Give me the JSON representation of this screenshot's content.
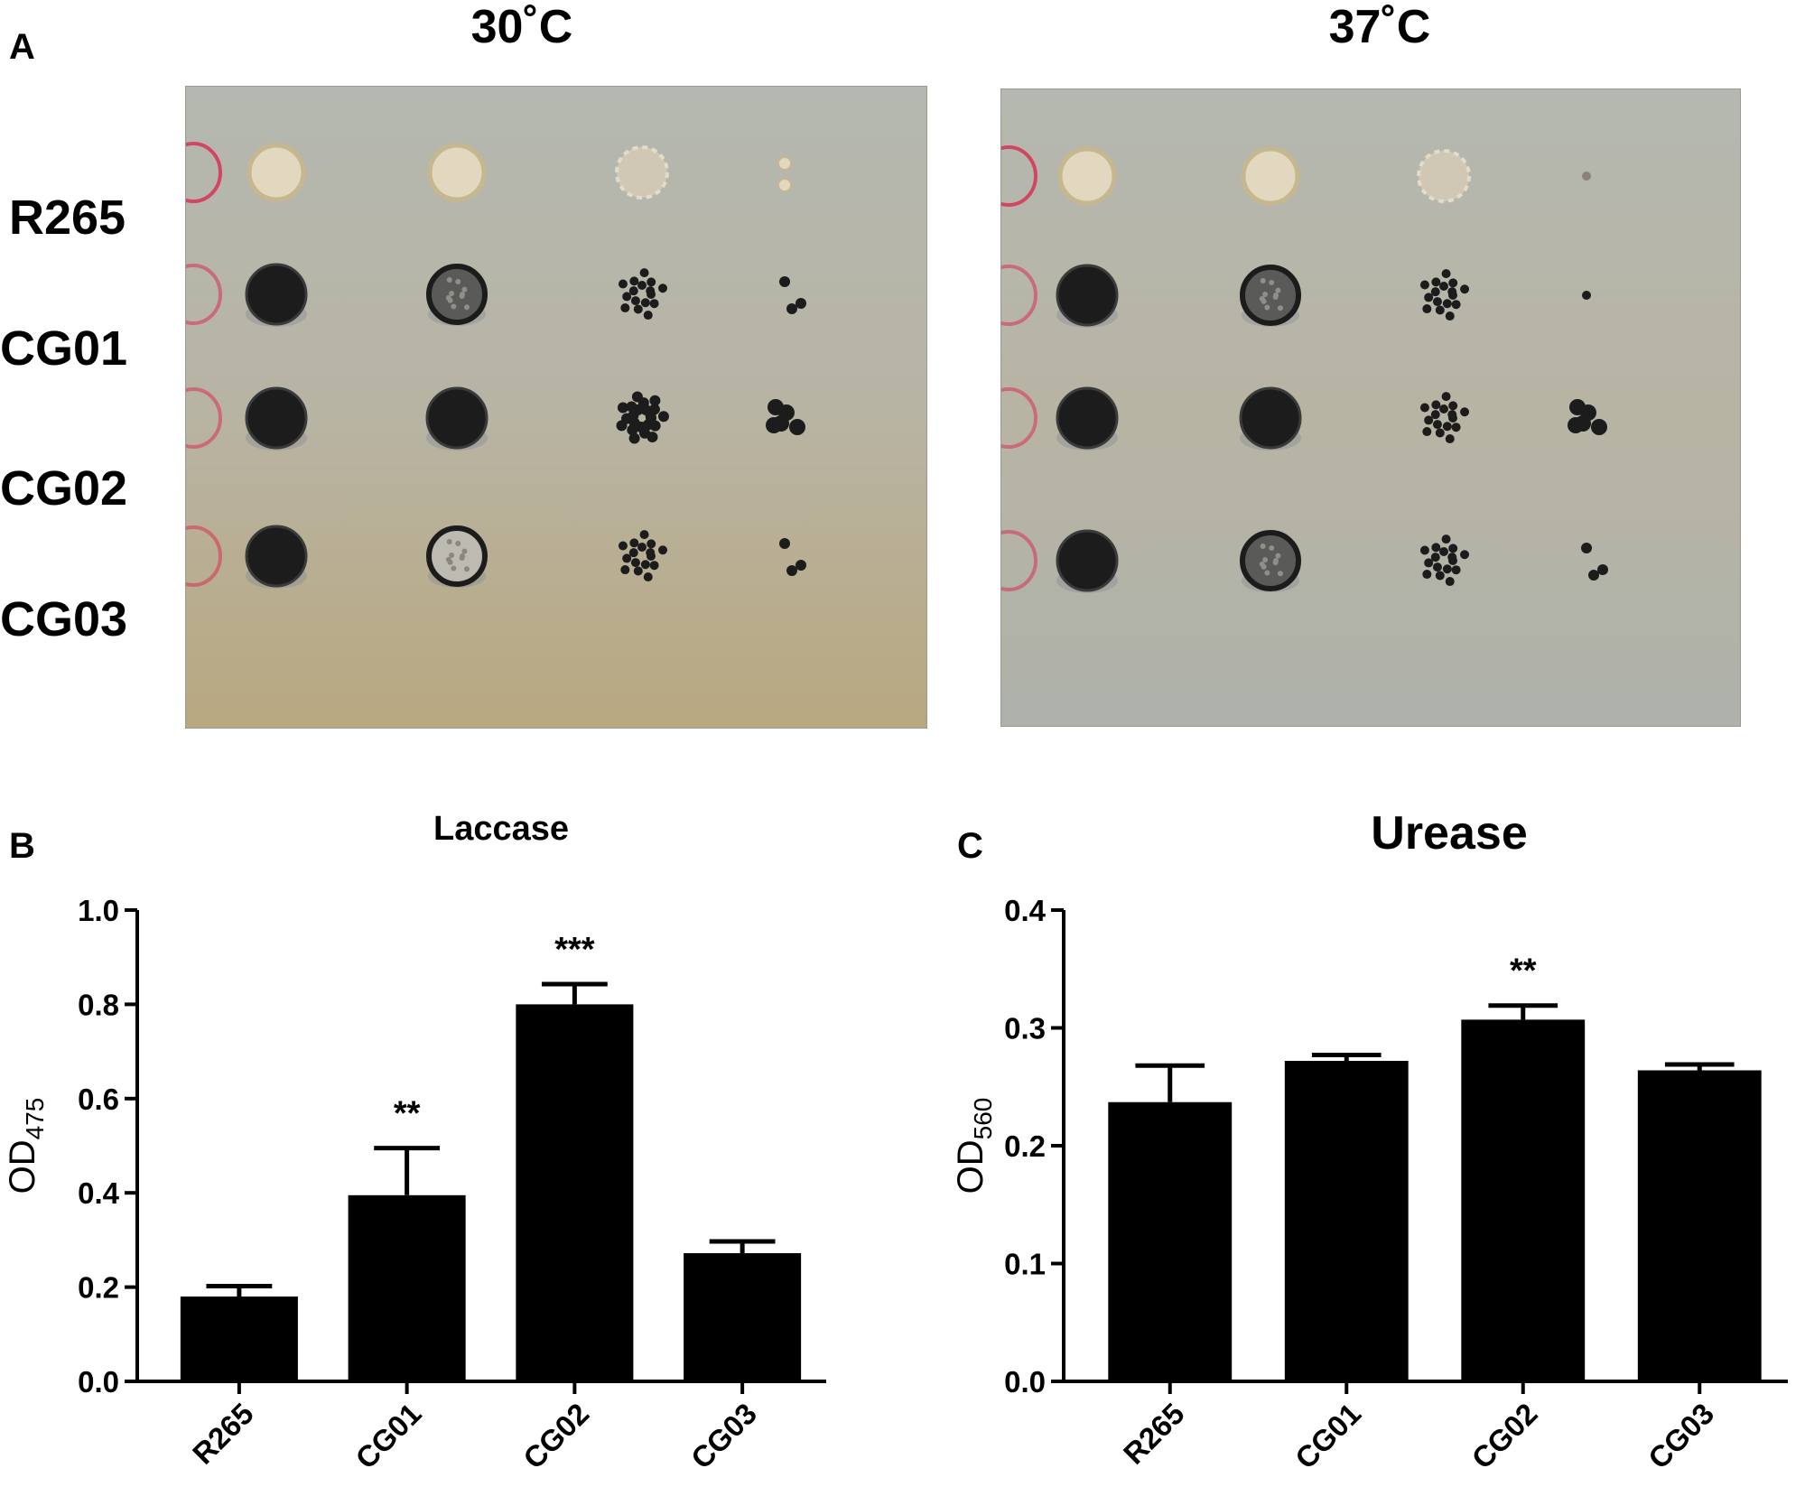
{
  "panel_a": {
    "label": "A",
    "plates": [
      {
        "temperature": "30˚C",
        "spots": [
          [
            {
              "type": "pale-ring"
            },
            {
              "type": "pale-ring"
            },
            {
              "type": "pale-dotted"
            },
            {
              "type": "pale-pair"
            }
          ],
          [
            {
              "type": "dark-solid"
            },
            {
              "type": "dark-speckled"
            },
            {
              "type": "colonies-ring"
            },
            {
              "type": "few-colonies"
            }
          ],
          [
            {
              "type": "dark-solid"
            },
            {
              "type": "dark-solid"
            },
            {
              "type": "colonies-dense"
            },
            {
              "type": "few-colonies-big"
            }
          ],
          [
            {
              "type": "dark-solid"
            },
            {
              "type": "grey-speckled"
            },
            {
              "type": "colonies-ring"
            },
            {
              "type": "few-colonies"
            }
          ]
        ]
      },
      {
        "temperature": "37˚C",
        "spots": [
          [
            {
              "type": "pale-ring"
            },
            {
              "type": "pale-ring"
            },
            {
              "type": "pale-dotted"
            },
            {
              "type": "single-dot"
            }
          ],
          [
            {
              "type": "dark-solid"
            },
            {
              "type": "dark-speckled"
            },
            {
              "type": "colonies-ring"
            },
            {
              "type": "single-dot"
            }
          ],
          [
            {
              "type": "dark-solid"
            },
            {
              "type": "dark-solid"
            },
            {
              "type": "colonies-ring"
            },
            {
              "type": "few-colonies-big"
            }
          ],
          [
            {
              "type": "dark-solid"
            },
            {
              "type": "dark-speckled"
            },
            {
              "type": "colonies-ring"
            },
            {
              "type": "few-colonies"
            }
          ]
        ]
      }
    ],
    "strains": [
      "R265",
      "CG01",
      "CG02",
      "CG03"
    ],
    "colors": {
      "plate_bg": "#b8b4a4",
      "pale_colony": "#e2d8c0",
      "dark_colony": "#1c1c1c",
      "marker": "#d63a5a"
    }
  },
  "chart_data": [
    {
      "panel": "B",
      "type": "bar",
      "title": "Laccase",
      "ylabel_main": "OD",
      "ylabel_sub": "475",
      "xlabel": "",
      "categories": [
        "R265",
        "CG01",
        "CG02",
        "CG03"
      ],
      "values": [
        0.18,
        0.395,
        0.8,
        0.272
      ],
      "errors": [
        0.022,
        0.1,
        0.043,
        0.025
      ],
      "significance": [
        "",
        "**",
        "***",
        ""
      ],
      "ylim": [
        0,
        1.0
      ],
      "yticks": [
        "0.0",
        "0.2",
        "0.4",
        "0.6",
        "0.8",
        "1.0"
      ],
      "grid": false,
      "bar_color": "#000000"
    },
    {
      "panel": "C",
      "type": "bar",
      "title": "Urease",
      "ylabel_main": "OD",
      "ylabel_sub": "560",
      "xlabel": "",
      "categories": [
        "R265",
        "CG01",
        "CG02",
        "CG03"
      ],
      "values": [
        0.237,
        0.272,
        0.307,
        0.264
      ],
      "errors": [
        0.031,
        0.005,
        0.012,
        0.005
      ],
      "significance": [
        "",
        "",
        "**",
        ""
      ],
      "ylim": [
        0,
        0.4
      ],
      "yticks": [
        "0.0",
        "0.1",
        "0.2",
        "0.3",
        "0.4"
      ],
      "grid": false,
      "bar_color": "#000000"
    }
  ]
}
